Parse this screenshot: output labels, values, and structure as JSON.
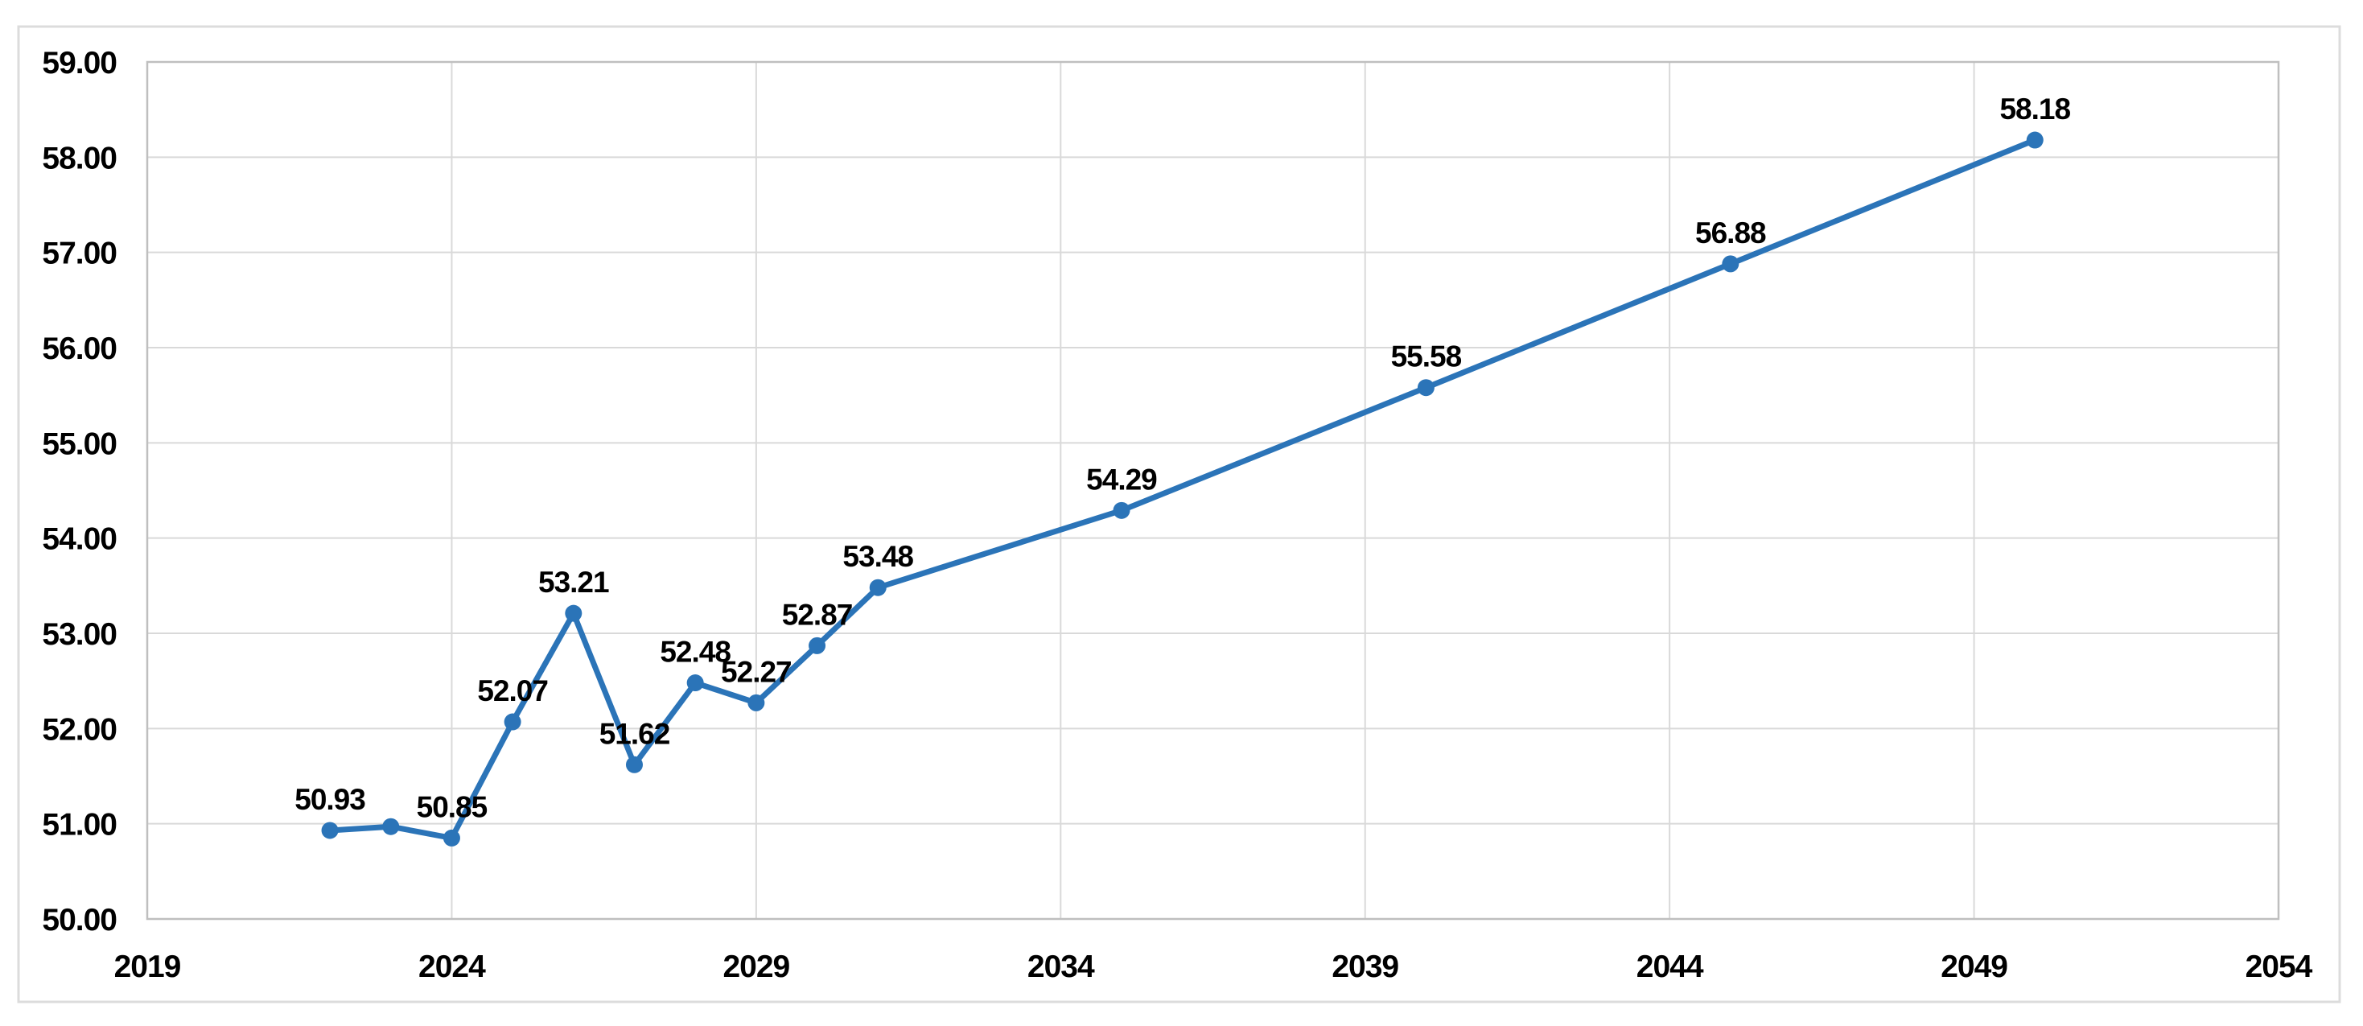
{
  "chart_data": {
    "type": "line",
    "title": "",
    "xlabel": "",
    "ylabel": "",
    "grid": true,
    "legend": false,
    "xlim": [
      2019,
      2054
    ],
    "ylim": [
      50,
      59
    ],
    "x_tick_step": 5,
    "y_tick_step": 1,
    "x_tick_labels": [
      "2019",
      "2024",
      "2029",
      "2034",
      "2039",
      "2044",
      "2049",
      "2054"
    ],
    "y_tick_labels": [
      "50.00",
      "51.00",
      "52.00",
      "53.00",
      "54.00",
      "55.00",
      "56.00",
      "57.00",
      "58.00",
      "59.00"
    ],
    "series": [
      {
        "name": "projection-line",
        "color": "#2B74B8",
        "marker": "circle",
        "points": [
          {
            "x": 2022,
            "y": 50.93,
            "label": "50.93"
          },
          {
            "x": 2023,
            "y": 50.97,
            "label": ""
          },
          {
            "x": 2024,
            "y": 50.85,
            "label": "50.85"
          },
          {
            "x": 2025,
            "y": 52.07,
            "label": "52.07"
          },
          {
            "x": 2026,
            "y": 53.21,
            "label": "53.21"
          },
          {
            "x": 2027,
            "y": 51.62,
            "label": "51.62"
          },
          {
            "x": 2028,
            "y": 52.48,
            "label": "52.48"
          },
          {
            "x": 2029,
            "y": 52.27,
            "label": "52.27"
          },
          {
            "x": 2030,
            "y": 52.87,
            "label": "52.87"
          },
          {
            "x": 2031,
            "y": 53.48,
            "label": "53.48"
          },
          {
            "x": 2035,
            "y": 54.29,
            "label": "54.29"
          },
          {
            "x": 2040,
            "y": 55.58,
            "label": "55.58"
          },
          {
            "x": 2045,
            "y": 56.88,
            "label": "56.88"
          },
          {
            "x": 2050,
            "y": 58.18,
            "label": "58.18"
          }
        ]
      }
    ],
    "colors": {
      "line": "#2B74B8",
      "marker": "#2B74B8",
      "gridline": "#D9D9D9",
      "plot_border": "#BFBFBF",
      "frame_border": "#DCDCDC",
      "text": "#000000",
      "background": "#FFFFFF"
    }
  }
}
